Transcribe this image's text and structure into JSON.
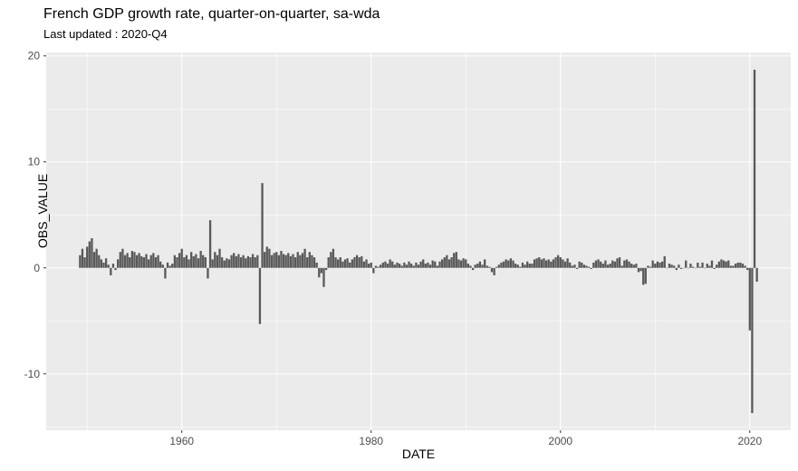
{
  "header": {
    "title": "French GDP growth rate, quarter-on-quarter, sa-wda",
    "subtitle": "Last updated : 2020-Q4"
  },
  "chart_data": {
    "type": "bar",
    "title": "French GDP growth rate, quarter-on-quarter, sa-wda",
    "subtitle": "Last updated : 2020-Q4",
    "xlabel": "DATE",
    "ylabel": "OBS_VALUE",
    "start_period": "1949-Q2",
    "end_period": "2020-Q4",
    "x_start": 1949.25,
    "quarter_step": 0.25,
    "xlim": [
      1945.675,
      2024.325
    ],
    "ylim": [
      -15.32,
      20.32
    ],
    "x_ticks": [
      1960,
      1980,
      2000,
      2020
    ],
    "x_minor_ticks": [
      1950,
      1970,
      1990,
      2010
    ],
    "y_ticks": [
      -10,
      0,
      10,
      20
    ],
    "y_minor_ticks": [
      -15,
      -5,
      5,
      15
    ],
    "legend": "none",
    "grid": "on",
    "bar_color": "#595959",
    "panel_bg": "#ebebeb",
    "grid_color": "#ffffff",
    "tick_color": "#333333",
    "tick_label_color": "#4d4d4d",
    "values": [
      1.2,
      1.8,
      1.0,
      2.0,
      2.5,
      2.8,
      1.5,
      1.8,
      1.2,
      0.8,
      0.5,
      0.9,
      0.3,
      -0.7,
      0.4,
      -0.2,
      0.8,
      1.5,
      1.8,
      1.2,
      1.4,
      1.0,
      1.6,
      1.5,
      1.2,
      1.4,
      1.1,
      1.0,
      1.3,
      0.8,
      1.2,
      1.4,
      1.0,
      1.2,
      0.6,
      0.3,
      -1.0,
      0.5,
      0.2,
      0.4,
      1.2,
      1.0,
      1.4,
      1.8,
      1.0,
      1.2,
      0.8,
      1.5,
      1.1,
      1.3,
      0.9,
      1.6,
      1.2,
      1.0,
      -1.0,
      4.5,
      0.8,
      1.5,
      1.2,
      1.8,
      1.0,
      0.7,
      0.9,
      0.8,
      1.2,
      1.4,
      1.1,
      1.3,
      1.0,
      1.2,
      0.9,
      1.1,
      1.0,
      1.3,
      1.0,
      1.2,
      -5.3,
      8.0,
      1.5,
      2.0,
      1.8,
      1.2,
      1.4,
      1.5,
      1.2,
      1.6,
      1.3,
      1.2,
      1.4,
      1.1,
      1.3,
      1.0,
      1.5,
      1.2,
      1.4,
      1.8,
      1.0,
      1.5,
      1.2,
      1.0,
      0.5,
      -0.9,
      -0.5,
      -1.8,
      -0.2,
      1.0,
      1.5,
      1.8,
      1.0,
      0.8,
      1.0,
      0.6,
      0.8,
      0.9,
      0.5,
      0.8,
      1.0,
      1.2,
      1.0,
      1.1,
      0.6,
      0.8,
      0.4,
      0.5,
      -0.5,
      0.2,
      0.1,
      0.3,
      0.5,
      0.6,
      0.4,
      0.8,
      0.6,
      0.3,
      0.5,
      0.4,
      0.2,
      0.5,
      0.3,
      0.6,
      0.4,
      0.2,
      0.5,
      0.3,
      0.6,
      0.8,
      0.4,
      0.5,
      0.3,
      0.7,
      0.6,
      0.2,
      0.6,
      0.8,
      1.0,
      1.2,
      0.8,
      1.0,
      1.4,
      1.5,
      0.8,
      0.7,
      0.9,
      0.8,
      0.4,
      0.2,
      -0.2,
      0.3,
      0.4,
      0.6,
      0.3,
      0.8,
      0.2,
      0.1,
      -0.4,
      -0.7,
      0.1,
      0.3,
      0.5,
      0.6,
      0.8,
      0.7,
      0.9,
      0.7,
      0.4,
      0.3,
      0.1,
      0.5,
      0.3,
      0.6,
      0.4,
      0.4,
      0.8,
      0.9,
      1.0,
      0.8,
      0.9,
      0.7,
      0.8,
      0.6,
      0.8,
      1.0,
      1.2,
      1.0,
      0.8,
      0.6,
      0.9,
      0.5,
      0.2,
      0.3,
      -0.1,
      0.6,
      0.5,
      0.3,
      0.2,
      0.1,
      -0.1,
      0.5,
      0.7,
      0.8,
      0.6,
      0.4,
      0.7,
      0.3,
      0.4,
      0.7,
      0.6,
      0.9,
      1.0,
      0.2,
      0.7,
      0.8,
      0.6,
      0.4,
      0.3,
      0.4,
      -0.4,
      -0.3,
      -1.6,
      -1.5,
      0.2,
      0.1,
      0.7,
      0.4,
      0.6,
      0.5,
      0.6,
      1.1,
      0.0,
      0.4,
      0.3,
      0.2,
      -0.2,
      0.3,
      -0.1,
      0.0,
      0.7,
      0.0,
      0.4,
      0.1,
      0.0,
      0.5,
      0.1,
      0.5,
      0.0,
      0.4,
      0.2,
      0.7,
      -0.1,
      0.3,
      0.6,
      0.8,
      0.7,
      0.6,
      0.7,
      0.2,
      0.2,
      0.4,
      0.5,
      0.5,
      0.4,
      0.2,
      -0.2,
      -5.9,
      -13.7,
      18.7,
      -1.3
    ]
  }
}
